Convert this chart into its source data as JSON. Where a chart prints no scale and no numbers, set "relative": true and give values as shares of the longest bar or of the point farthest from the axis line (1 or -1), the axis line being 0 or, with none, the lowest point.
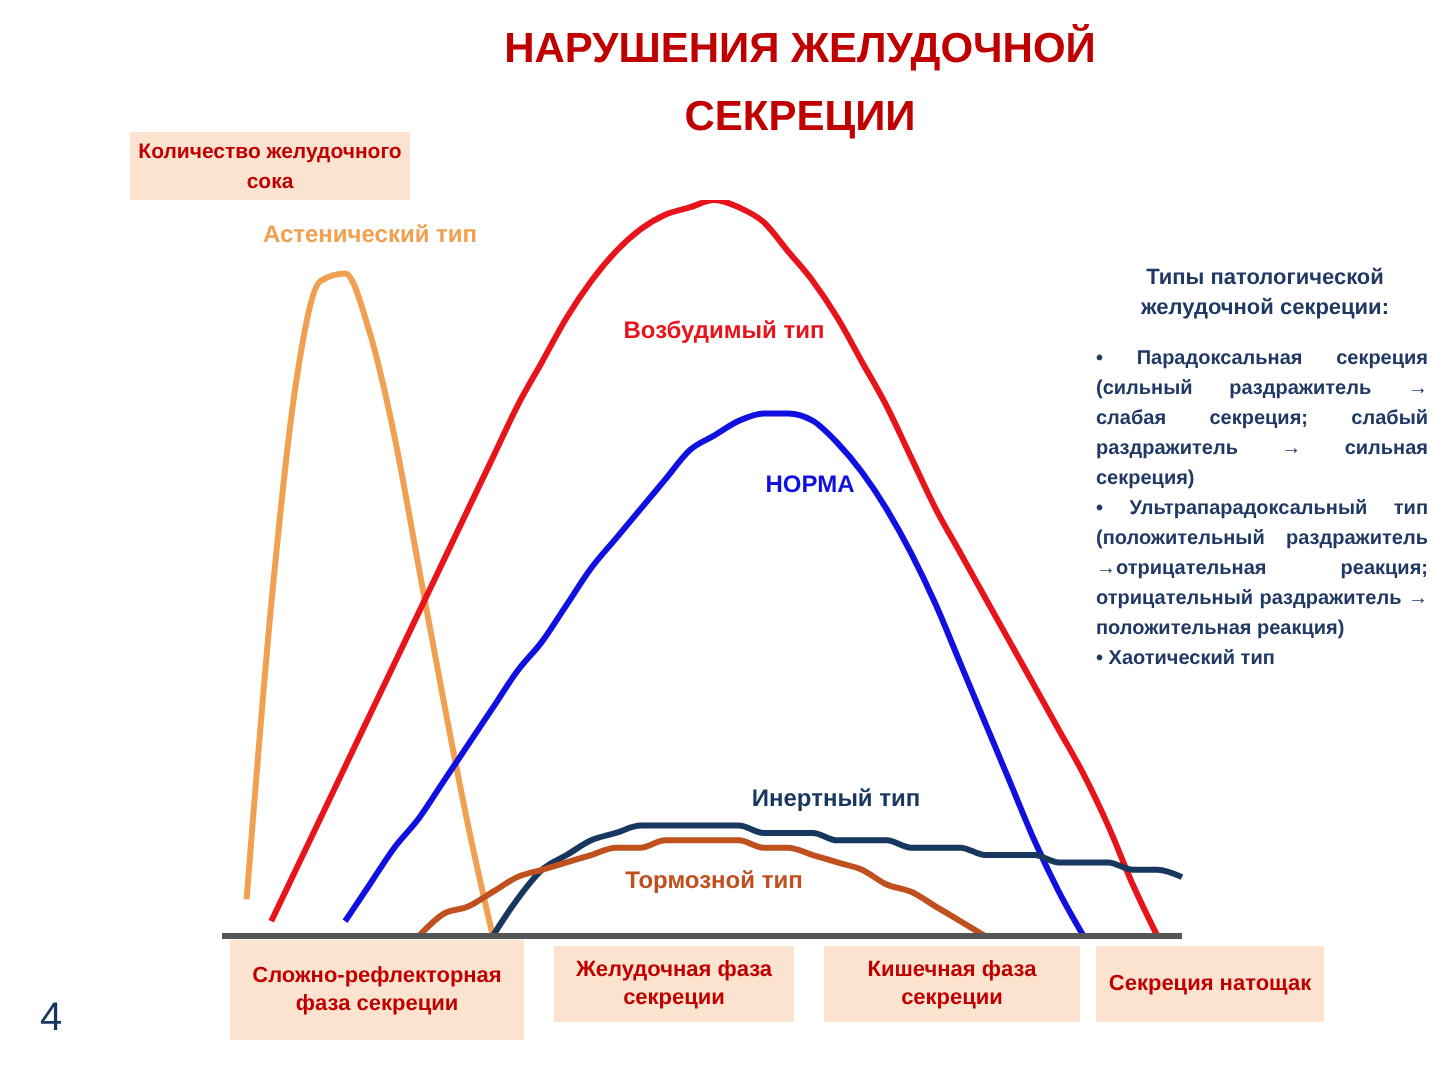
{
  "chart_data": {
    "type": "line",
    "relative": true,
    "title": "НАРУШЕНИЯ ЖЕЛУДОЧНОЙ СЕКРЕЦИИ",
    "ylabel": "Количество желудочного сока",
    "categories": [
      null,
      null,
      null,
      null,
      null,
      null,
      null,
      null,
      null,
      null,
      null,
      null,
      null,
      null,
      null,
      null,
      null,
      null,
      null,
      null,
      null,
      null,
      null,
      null,
      null,
      null,
      null,
      null,
      null,
      null,
      null,
      null,
      null,
      null,
      null,
      null,
      null,
      null,
      null,
      null
    ],
    "series": [
      {
        "name": "Астенический тип",
        "color": "#f0a050",
        "values": [
          null,
          0.05,
          0.45,
          0.75,
          0.89,
          0.9,
          0.82,
          0.68,
          0.5,
          0.32,
          0.15,
          0,
          null,
          null,
          null,
          null,
          null,
          null,
          null,
          null,
          null,
          null,
          null,
          null,
          null,
          null,
          null,
          null,
          null,
          null,
          null,
          null,
          null,
          null,
          null,
          null,
          null,
          null,
          null,
          null
        ]
      },
      {
        "name": "Возбудимый тип",
        "color": "#e8141c",
        "values": [
          null,
          null,
          0.02,
          0.09,
          0.16,
          0.23,
          0.3,
          0.37,
          0.44,
          0.51,
          0.58,
          0.65,
          0.72,
          0.78,
          0.84,
          0.89,
          0.93,
          0.96,
          0.98,
          0.99,
          1,
          0.99,
          0.97,
          0.93,
          0.89,
          0.84,
          0.78,
          0.72,
          0.65,
          0.58,
          0.52,
          0.46,
          0.4,
          0.34,
          0.28,
          0.22,
          0.15,
          0.07,
          0,
          null
        ]
      },
      {
        "name": "НОРМА",
        "color": "#1010e0",
        "values": [
          null,
          null,
          null,
          null,
          null,
          0.02,
          0.07,
          0.12,
          0.16,
          0.21,
          0.26,
          0.31,
          0.36,
          0.4,
          0.45,
          0.5,
          0.54,
          0.58,
          0.62,
          0.66,
          0.68,
          0.7,
          0.71,
          0.71,
          0.7,
          0.67,
          0.63,
          0.58,
          0.52,
          0.45,
          0.37,
          0.29,
          0.21,
          0.13,
          0.06,
          0,
          null,
          null,
          null,
          null
        ]
      },
      {
        "name": "Инертный тип",
        "color": "#17375e",
        "values": [
          null,
          null,
          null,
          null,
          null,
          null,
          null,
          null,
          null,
          null,
          null,
          0,
          0.05,
          0.09,
          0.11,
          0.13,
          0.14,
          0.15,
          0.15,
          0.15,
          0.15,
          0.15,
          0.14,
          0.14,
          0.14,
          0.13,
          0.13,
          0.13,
          0.12,
          0.12,
          0.12,
          0.11,
          0.11,
          0.11,
          0.1,
          0.1,
          0.1,
          0.09,
          0.09,
          0.08
        ]
      },
      {
        "name": "Тормозной тип",
        "color": "#c0501e",
        "values": [
          null,
          null,
          null,
          null,
          null,
          null,
          null,
          null,
          0,
          0.03,
          0.04,
          0.06,
          0.08,
          0.09,
          0.1,
          0.11,
          0.12,
          0.12,
          0.13,
          0.13,
          0.13,
          0.13,
          0.12,
          0.12,
          0.11,
          0.1,
          0.09,
          0.07,
          0.06,
          0.04,
          0.02,
          0,
          null,
          null,
          null,
          null,
          null,
          null,
          null,
          null
        ]
      }
    ],
    "annotations": [
      "Сложно-рефлекторная фаза секреции",
      "Желудочная фаза секреции",
      "Кишечная фаза секреции",
      "Секреция натощак",
      "Типы патологической желудочной секреции:",
      "• Парадоксальная секреция (сильный раздражитель → слабая секреция; слабый раздражитель → сильная секреция)",
      "• Ультрапарадоксальный тип (положительный раздражитель →отрицательная реакция; отрицательный раздражитель → положительная реакция)",
      "• Хаотический тип",
      "4"
    ]
  }
}
